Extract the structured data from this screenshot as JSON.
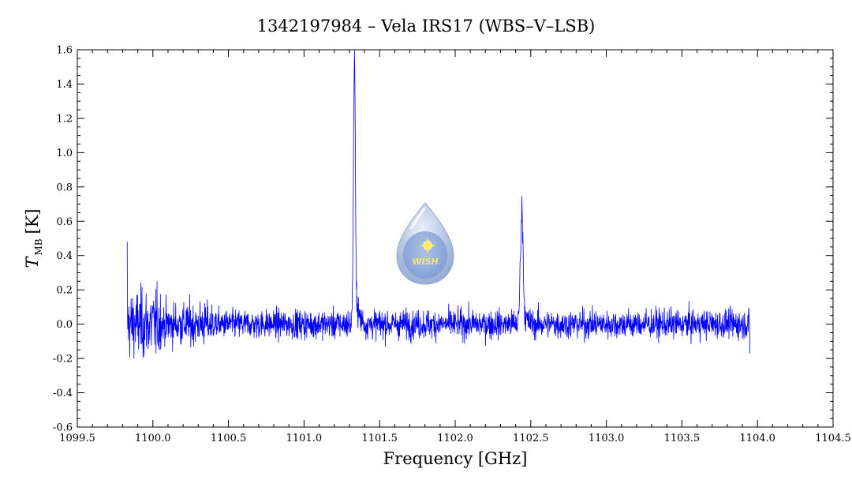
{
  "chart_data": {
    "type": "line",
    "title": "1342197984 – Vela IRS17 (WBS–V–LSB)",
    "xlabel": "Frequency [GHz]",
    "ylabel_main": "T",
    "ylabel_sub": "MB",
    "ylabel_unit": "[K]",
    "xlim": [
      1099.5,
      1104.5
    ],
    "ylim": [
      -0.6,
      1.6
    ],
    "x_ticks": [
      1099.5,
      1100.0,
      1100.5,
      1101.0,
      1101.5,
      1102.0,
      1102.5,
      1103.0,
      1103.5,
      1104.0,
      1104.5
    ],
    "x_tick_labels": [
      "1099.5",
      "1100.0",
      "1100.5",
      "1101.0",
      "1101.5",
      "1102.0",
      "1102.5",
      "1103.0",
      "1103.5",
      "1104.0",
      "1104.5"
    ],
    "y_ticks": [
      -0.6,
      -0.4,
      -0.2,
      0.0,
      0.2,
      0.4,
      0.6,
      0.8,
      1.0,
      1.2,
      1.4,
      1.6
    ],
    "y_tick_labels": [
      "-0.6",
      "-0.4",
      "-0.2",
      "0.0",
      "0.2",
      "0.4",
      "0.6",
      "0.8",
      "1.0",
      "1.2",
      "1.4",
      "1.6"
    ],
    "grid": false,
    "series_color": "#0000ff",
    "series": [
      {
        "x_range": [
          1099.83,
          1103.95
        ],
        "baseline": 0.0,
        "noise_rms": 0.07,
        "lines": [
          {
            "center": 1101.333,
            "peak": 1.43
          },
          {
            "center": 1102.44,
            "peak": 0.63
          }
        ]
      }
    ]
  },
  "logo": {
    "text": "WISH",
    "color": "#a9b9dc"
  }
}
